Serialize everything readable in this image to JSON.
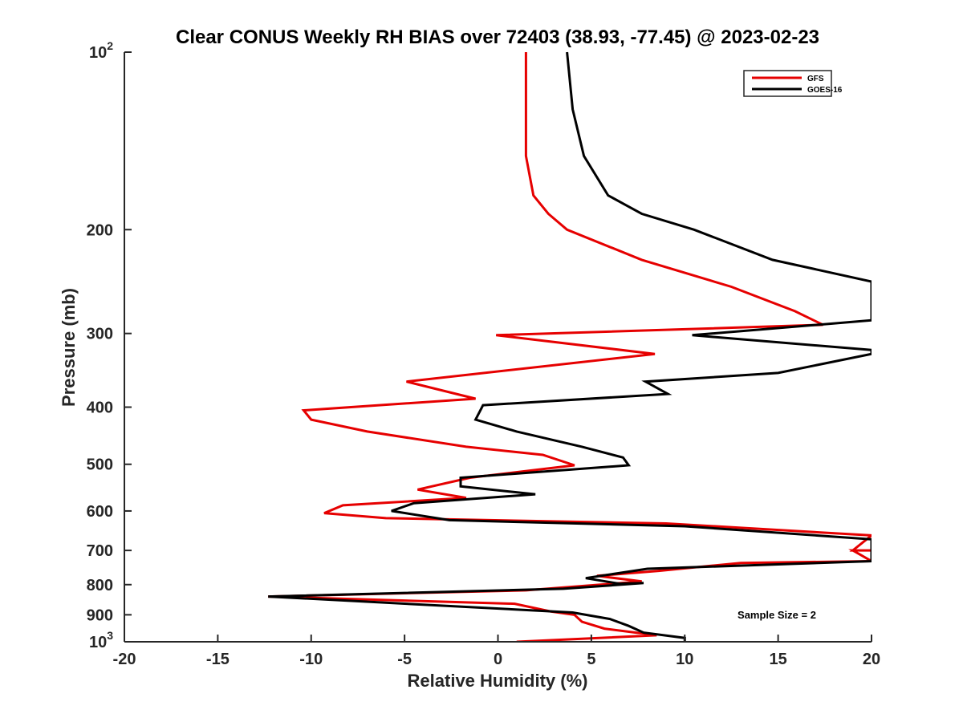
{
  "chart_data": {
    "type": "line",
    "title": "Clear CONUS Weekly RH BIAS over 72403 (38.93, -77.45) @ 2023-02-23",
    "xlabel": "Relative Humidity (%)",
    "ylabel": "Pressure (mb)",
    "xlim": [
      -20,
      20
    ],
    "ylim": [
      100,
      1000
    ],
    "y_scale": "log",
    "y_reversed": true,
    "x_ticks": [
      "-20",
      "-15",
      "-10",
      "-5",
      "0",
      "5",
      "10",
      "15",
      "20"
    ],
    "y_ticks": [
      {
        "value": 100,
        "label": "10",
        "sup": "2"
      },
      {
        "value": 200,
        "label": "200",
        "sup": ""
      },
      {
        "value": 300,
        "label": "300",
        "sup": ""
      },
      {
        "value": 400,
        "label": "400",
        "sup": ""
      },
      {
        "value": 500,
        "label": "500",
        "sup": ""
      },
      {
        "value": 600,
        "label": "600",
        "sup": ""
      },
      {
        "value": 700,
        "label": "700",
        "sup": ""
      },
      {
        "value": 800,
        "label": "800",
        "sup": ""
      },
      {
        "value": 900,
        "label": "900",
        "sup": ""
      },
      {
        "value": 1000,
        "label": "10",
        "sup": "3"
      }
    ],
    "legend_position": "top-right",
    "grid": false,
    "annotation": "Sample Size = 2",
    "series": [
      {
        "name": "GFS",
        "color": "#e60000",
        "points": [
          [
            1.5,
            100
          ],
          [
            1.5,
            125
          ],
          [
            1.5,
            150
          ],
          [
            1.9,
            175
          ],
          [
            2.7,
            188
          ],
          [
            3.7,
            200
          ],
          [
            7.7,
            225
          ],
          [
            12.5,
            250
          ],
          [
            15.9,
            275
          ],
          [
            17.4,
            290
          ],
          [
            -0.1,
            302
          ],
          [
            8.4,
            325
          ],
          [
            -4.9,
            362
          ],
          [
            -1.2,
            387
          ],
          [
            -10.4,
            405
          ],
          [
            -10.0,
            420
          ],
          [
            -7.0,
            440
          ],
          [
            -1.7,
            467
          ],
          [
            2.4,
            482
          ],
          [
            4.1,
            502
          ],
          [
            -1.5,
            527
          ],
          [
            -4.3,
            552
          ],
          [
            -1.7,
            570
          ],
          [
            -8.3,
            587
          ],
          [
            -9.3,
            605
          ],
          [
            -6.0,
            617
          ],
          [
            9.0,
            630
          ],
          [
            20.0,
            660
          ],
          [
            19.0,
            700
          ],
          [
            20.0,
            700
          ],
          [
            19.0,
            700
          ],
          [
            20.0,
            730
          ],
          [
            13.0,
            735
          ],
          [
            8.6,
            758
          ],
          [
            5.3,
            773
          ],
          [
            7.7,
            790
          ],
          [
            1.5,
            818
          ],
          [
            -12.3,
            838
          ],
          [
            0.9,
            862
          ],
          [
            2.8,
            888
          ],
          [
            4.1,
            900
          ],
          [
            4.5,
            925
          ],
          [
            5.7,
            950
          ],
          [
            8.5,
            975
          ],
          [
            1.0,
            1000
          ]
        ]
      },
      {
        "name": "GOES-16",
        "color": "#000000",
        "points": [
          [
            3.7,
            100
          ],
          [
            4.0,
            125
          ],
          [
            4.6,
            150
          ],
          [
            5.9,
            175
          ],
          [
            7.7,
            188
          ],
          [
            10.5,
            200
          ],
          [
            14.7,
            225
          ],
          [
            20.0,
            245
          ],
          [
            20.0,
            285
          ],
          [
            10.4,
            302
          ],
          [
            20.0,
            320
          ],
          [
            20.0,
            325
          ],
          [
            15.0,
            350
          ],
          [
            7.9,
            362
          ],
          [
            9.1,
            380
          ],
          [
            -0.8,
            397
          ],
          [
            -1.2,
            420
          ],
          [
            1.0,
            440
          ],
          [
            4.5,
            467
          ],
          [
            6.7,
            487
          ],
          [
            7.0,
            502
          ],
          [
            -2.0,
            527
          ],
          [
            -2.0,
            545
          ],
          [
            2.0,
            562
          ],
          [
            -4.5,
            582
          ],
          [
            -5.7,
            600
          ],
          [
            -2.6,
            622
          ],
          [
            10.0,
            637
          ],
          [
            20.0,
            670
          ],
          [
            20.0,
            730
          ],
          [
            8.0,
            752
          ],
          [
            4.7,
            780
          ],
          [
            6.5,
            797
          ],
          [
            7.8,
            795
          ],
          [
            3.5,
            813
          ],
          [
            -12.3,
            838
          ],
          [
            4.0,
            892
          ],
          [
            6.0,
            915
          ],
          [
            7.0,
            940
          ],
          [
            7.8,
            965
          ],
          [
            10.0,
            985
          ],
          [
            10.0,
            1000
          ]
        ]
      }
    ]
  }
}
